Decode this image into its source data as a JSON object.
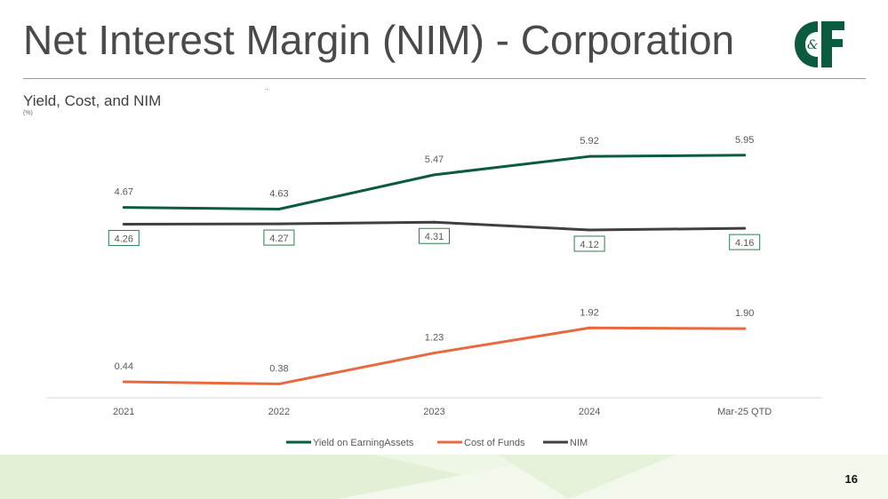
{
  "slide": {
    "title": "Net Interest Margin (NIM) - Corporation",
    "subtitle": "Yield, Cost, and NIM",
    "unit_note": "(%)",
    "page_number": "16",
    "logo_text": "C&F"
  },
  "colors": {
    "yield": "#0b5b3e",
    "cost": "#e8693f",
    "nim": "#404040",
    "nim_box_border": "#2e7d4f",
    "footer_green": "#e9f3dc"
  },
  "chart_data": {
    "type": "line",
    "title": "Yield, Cost, and NIM",
    "ylabel": "(%)",
    "xlabel": "",
    "categories": [
      "2021",
      "2022",
      "2023",
      "2024",
      "Mar-25 QTD"
    ],
    "series": [
      {
        "name": "Yield on EarningAssets",
        "values": [
          4.67,
          4.63,
          5.47,
          5.92,
          5.95
        ],
        "labels": [
          "4.67",
          "4.63",
          "5.47",
          "5.92",
          "5.95"
        ],
        "color": "#0b5b3e"
      },
      {
        "name": "Cost of Funds",
        "values": [
          0.44,
          0.38,
          1.23,
          1.92,
          1.9
        ],
        "labels": [
          "0.44",
          "0.38",
          "1.23",
          "1.92",
          "1.90"
        ],
        "color": "#e8693f"
      },
      {
        "name": "NIM",
        "values": [
          4.26,
          4.27,
          4.31,
          4.12,
          4.16
        ],
        "labels": [
          "4.26",
          "4.27",
          "4.31",
          "4.12",
          "4.16"
        ],
        "color": "#404040"
      }
    ],
    "ylim": [
      0,
      7.5
    ],
    "grid": false,
    "legend": "bottom"
  }
}
